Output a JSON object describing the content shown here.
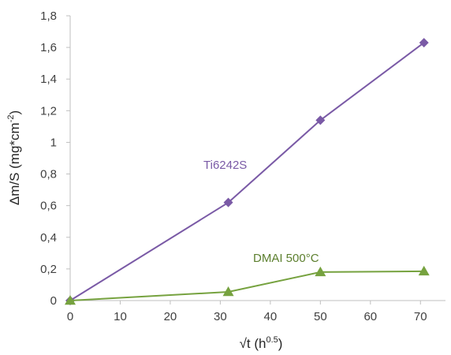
{
  "chart_data": {
    "type": "line",
    "title": "",
    "xlabel": {
      "base": "√t (h",
      "sup": "0.5",
      "tail": ")"
    },
    "ylabel": {
      "base": "Δm/S (mg*cm",
      "sup": "-2",
      "tail": ")"
    },
    "xlim": [
      0,
      75
    ],
    "ylim": [
      0,
      1.8
    ],
    "x_ticks": [
      {
        "value": 0,
        "label": "0"
      },
      {
        "value": 10,
        "label": "10"
      },
      {
        "value": 20,
        "label": "20"
      },
      {
        "value": 30,
        "label": "30"
      },
      {
        "value": 40,
        "label": "40"
      },
      {
        "value": 50,
        "label": "50"
      },
      {
        "value": 60,
        "label": "60"
      },
      {
        "value": 70,
        "label": "70"
      }
    ],
    "y_ticks": [
      {
        "value": 0,
        "label": "0"
      },
      {
        "value": 0.2,
        "label": "0,2"
      },
      {
        "value": 0.4,
        "label": "0,4"
      },
      {
        "value": 0.6,
        "label": "0,6"
      },
      {
        "value": 0.8,
        "label": "0,8"
      },
      {
        "value": 1.0,
        "label": "1"
      },
      {
        "value": 1.2,
        "label": "1,2"
      },
      {
        "value": 1.4,
        "label": "1,4"
      },
      {
        "value": 1.6,
        "label": "1,6"
      },
      {
        "value": 1.8,
        "label": "1,8"
      }
    ],
    "grid": false,
    "legend": "none",
    "series": [
      {
        "name": "Ti6242S",
        "color": "#7a5aa6",
        "marker": "diamond",
        "x": [
          0,
          31.6,
          50,
          70.7
        ],
        "y": [
          0,
          0.62,
          1.14,
          1.63
        ]
      },
      {
        "name": "DMAI 500°C",
        "color": "#76a23f",
        "marker": "triangle",
        "x": [
          0,
          31.6,
          50,
          70.7
        ],
        "y": [
          0,
          0.055,
          0.18,
          0.185
        ]
      }
    ]
  }
}
